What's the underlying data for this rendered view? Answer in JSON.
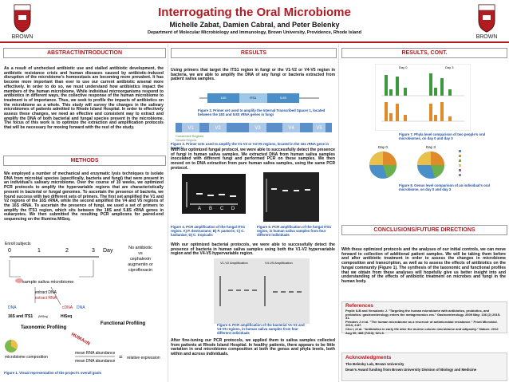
{
  "header": {
    "title": "Interrogating the Oral Microbiome",
    "authors": "Michelle Zabat, Damien Cabral, and Peter Belenky",
    "affiliation": "Department of Molecular Microbiology and Immunology, Brown University, Providence, Rhode Island",
    "logo_left": "BROWN",
    "logo_right": "BROWN"
  },
  "abstract": {
    "heading": "ABSTRACT/INTRODUCTION",
    "text": "As a result of unchecked antibiotic use and stalled antibiotic development, the antibiotic resistance crisis and human diseases caused by antibiotic-induced disruption of the microbiome's homeostasis are becoming more prevalent. It has become more important than ever to use our current antibiotic arsenal more effectively. In order to do so, we must understand how antibiotics impact the members of the human microbiome. While individual microorganisms respond to antibiotics in different ways, the collective response of the human microbiome to treatment is of importance. Thus, we seek to profile the impacts of antibiotics on the microbiome as a whole. This study will survey the changes in the salivary microbiomes of patients admitted to Rhode Island Hospital. In order to effectively assess these changes, we need an effective and consistent way to extract and amplify the DNA of both bacterial and fungal species present in the microbiome. The focus of this work is to optimize the extraction and amplification protocols that will be necessary for moving forward with the rest of the study."
  },
  "methods": {
    "heading": "METHODS",
    "text": "We employed a number of mechanical and enzymatic lysis techniques to isolate DNA from microbial species (specifically, bacteria and fungi) that were present in an individual's salivary microbiome. Over the course of 10 weeks, we optimized PCR protocols to amplify the hypervariable regions that are characteristically present in bacterial or fungal genomes. To ascertain the presence of bacteria, we found success with two different sets of primers. The first set amplified the V1 and V2 regions of the 16S rRNA, while the second amplified the V4 and V5 regions of the 16S rRNA. To ascertain the presence of fungi, we used a set of primers to amplify the ITS1 region, which sits between the 18S and 5.8S rRNA genes in eukaryotes. We then submitted the resulting PCR amplicons for paired-end sequencing on the Illumina MiSeq.",
    "figure1": {
      "enroll": "Enroll subjects",
      "days": [
        "0",
        "1",
        "2",
        "3",
        "Day"
      ],
      "treatment": [
        "No antibiotic",
        "vs",
        "cephalexin",
        "augmentin or",
        "ciprofloxacin"
      ],
      "sample": "sample saliva microbiome",
      "extract_dna": "extract DNA",
      "extract_rna": "extract RNA",
      "dna_left": "DNA",
      "cdna": "cDNA",
      "dna_right": "DNA",
      "seq16s": "16S and ITS1",
      "miseq": "(MiSeq)",
      "hiseq": "HiSeq",
      "taxonomic": "Taxonomic Profiling",
      "composition": "microbiome composition",
      "functional": "Functional Profiling",
      "humann": "HUMAnN",
      "mean_rna": "mean RNA abundance",
      "mean_dna": "mean DNA abundance",
      "equals": "=",
      "relative": "relative expression",
      "caption": "Figure 1. Visual representation of the project's overall goals"
    }
  },
  "results": {
    "heading": "RESULTS",
    "p1": "Using primers that target the ITS1 region in fungi or the V1-V2 or V4-V5 region in bacteria, we are able to amplify the DNA of any fungi or bacteria extracted from patient saliva samples.",
    "fig2": {
      "labels": [
        "18S",
        "ITS1",
        "5.8S"
      ],
      "caption": "Figure 2. Primer set used to amplify the Internal Transcribed Spacer 1, located between the 18S and 5.8S rRNA genes in fungi"
    },
    "fig3": {
      "labels": [
        "V1",
        "V2",
        "V3",
        "V4",
        "V5"
      ],
      "conserved": "Conserved Regions",
      "variable": "Variable Regions",
      "caption": "Figure 3. Primer sets used to amplify the V1-V2 or V4-V5 regions, located in the 16s rRNA gene in bacteria"
    },
    "p2": "With our optimized fungal protocol, we were able to successfully detect the presence of fungi in human saliva samples. We extracted DNA from human saliva samples inoculated with different fungi and performed PCR on these samples. We then moved on to DNA extraction from pure human saliva samples, using the same PCR protocol.",
    "fig4": {
      "lanes": [
        "A",
        "B",
        "C",
        "D"
      ],
      "caption": "Figure 4. PCR amplification of the fungal ITS1 region. A) P. destructans; B) P. pastoris; C) C. lusitaniae; D) C. tropicalis"
    },
    "fig5": {
      "caption": "Figure 5. PCR amplification of the fungal ITS1 region, in human saliva samples from four different individuals"
    },
    "p3": "With our optimized bacterial protocols, we were able to successfully detect the presence of bacteria in human saliva samples using both the V1-V2 hypervariable region and the V4-V5 hypervariable region.",
    "fig6": {
      "label_left": "V1-V2 Amplification",
      "label_right": "V4-V5 Amplification",
      "caption": "Figure 6. PCR amplification of the bacterial V1-V2 and V4-V5 regions, in human saliva samples from four different individuals"
    },
    "p4": "After fine-tuning our PCR protocols, we applied them to saliva samples collected from patients at Rhode Island Hospital. In healthy patients, there appears to be little variation in oral microbiome composition at both the genus and phyla levels, both within and across individuals."
  },
  "results_cont": {
    "heading": "RESULTS, CONT.",
    "fig7": {
      "day0": "Day 0",
      "day3": "Day 3",
      "caption": "Figure 7. Phyla level comparison of two people's oral microbiomes, on day 0 and day 3"
    },
    "fig8": {
      "day0": "Day 0",
      "day3": "Day 3",
      "caption": "Figure 8. Genus level comparison of an individual's oral microbiome, on day 0 and day 3"
    }
  },
  "conclusions": {
    "heading": "CONCLUSIONS/FUTURE DIRECTIONS",
    "text": "With these optimized protocols and the analyses of our initial controls, we can move forward to collection of additional patient samples. We will be taking them before and after antibiotic treatment in order to assess the changes in microbiome composition and transcription, as well as to assess the effects of antibiotics on the fungal community (Figure 1). The synthesis of the taxonomic and functional profiles that we obtain from these analyses will hopefully give us better insight into and understanding of the effects of antibiotic treatment on microbes and fungi in the human body."
  },
  "references": {
    "heading": "References",
    "items": [
      "Peplie ILB and Versalovic J. \"Targeting the human microbiome with antibiotics, probiotics, and prebiotics: gastroenterology enters the metagenomics era.\" Gastroenterology. 2009 May; 136 (2) 2015-31.",
      "Penders J et al. \"The human microbiome as a reservoir of antimicrobial resistance.\" Front Microbiol. 2013; 4:87.",
      "Cho I, et al. \"Antibiotics in early life alter the murine colonic microbiome and adiposity.\" Nature. 2012 Aug 30; 488 (7413): 621-6."
    ]
  },
  "acknowledgments": {
    "heading": "Acknowledgments",
    "items": [
      "The Belenky Lab, Brown University",
      "Dean's Award funding from Brown University Division of Biology and Medicine"
    ]
  }
}
